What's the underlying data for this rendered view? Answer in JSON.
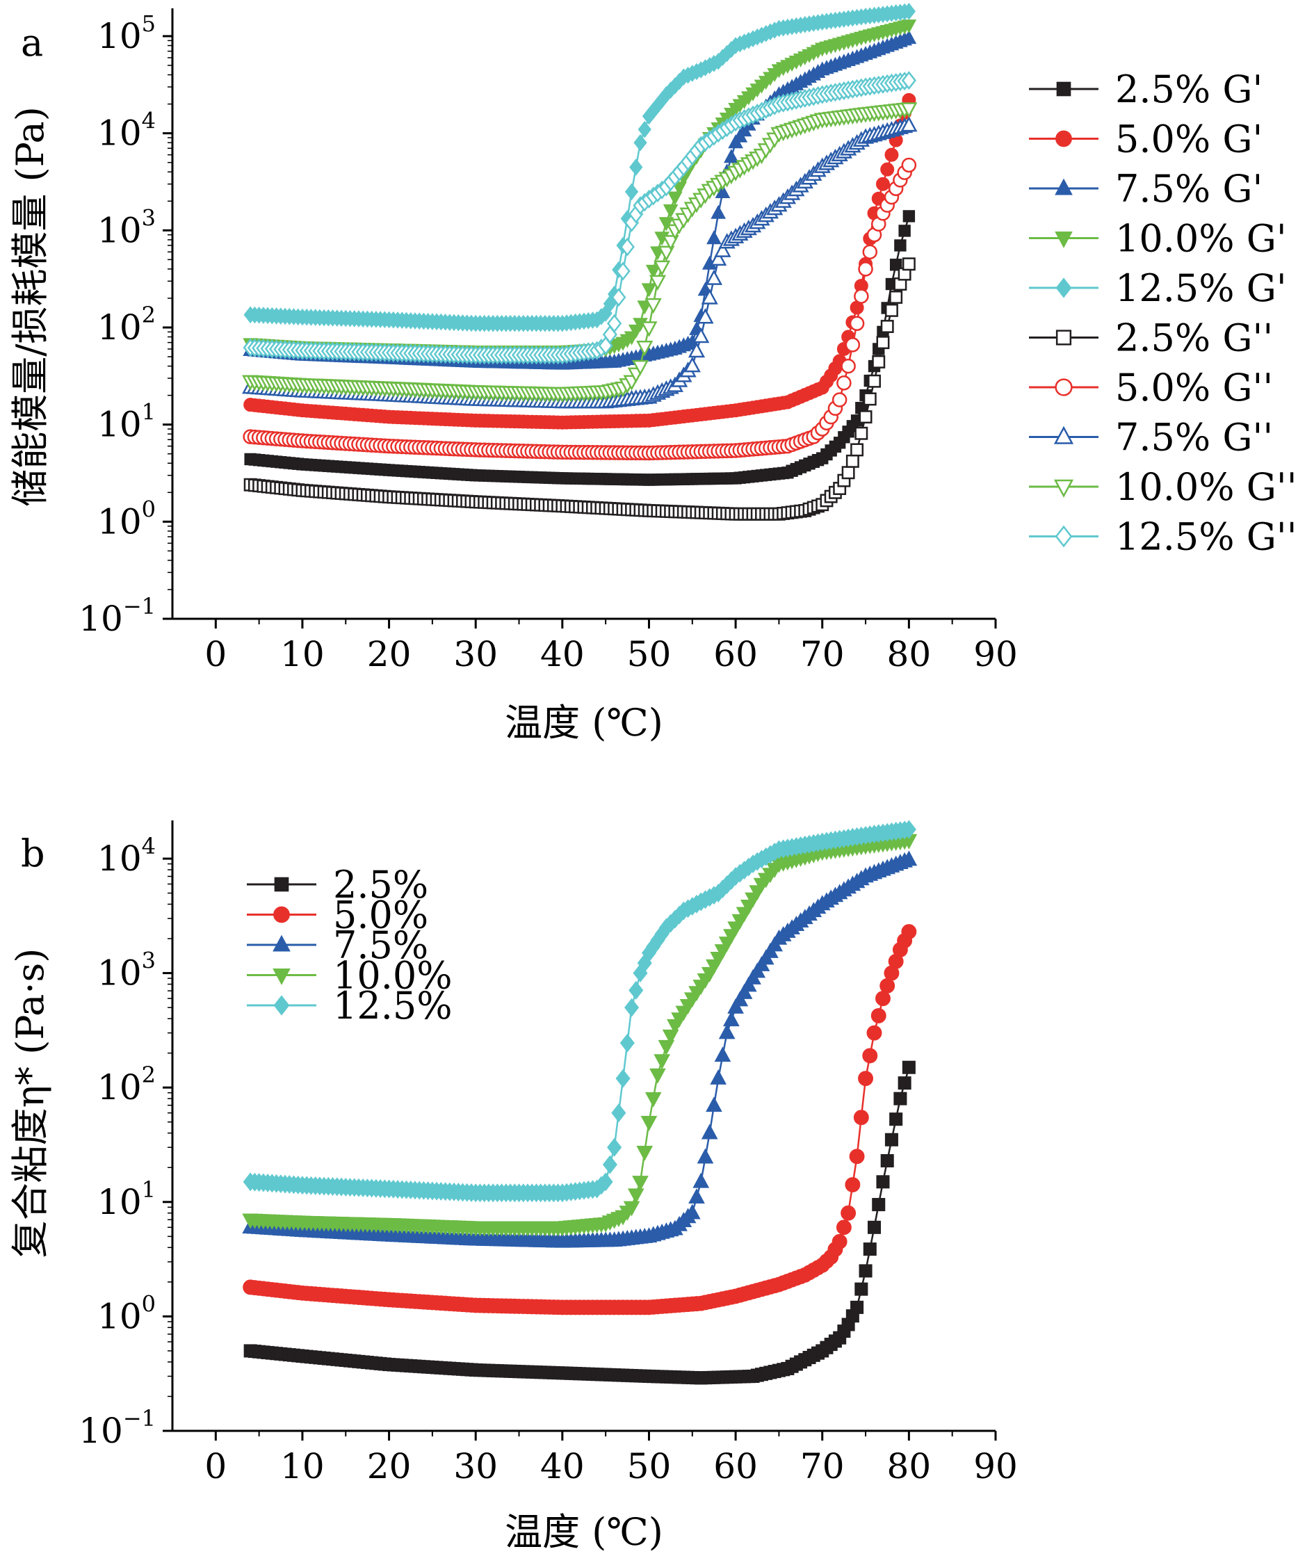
{
  "chart_data": [
    {
      "panel_label": "a",
      "type": "scatter",
      "xlabel": "温度 (℃)",
      "ylabel": "储能模量/损耗模量 (Pa)",
      "x_ticks": [
        0,
        10,
        20,
        30,
        40,
        50,
        60,
        70,
        80,
        90
      ],
      "xlim": [
        -5,
        90
      ],
      "y_scale": "log",
      "ylim": [
        0.1,
        200000
      ],
      "y_tick_exponents": [
        "5",
        "4",
        "3",
        "2",
        "1",
        "0",
        "−1"
      ],
      "y_tick_values": [
        100000,
        10000,
        1000,
        100,
        10,
        1,
        0.1
      ],
      "legend_placement": "right-outside",
      "series": [
        {
          "name": "2.5% G'",
          "color": "#231f20",
          "marker": "square",
          "filled": true,
          "x": [
            4,
            10,
            20,
            30,
            40,
            50,
            60,
            66,
            70,
            72,
            74,
            75,
            76,
            77,
            78,
            79,
            80
          ],
          "y": [
            4.4,
            3.9,
            3.4,
            3.0,
            2.8,
            2.7,
            2.8,
            3.2,
            4.5,
            6.5,
            11,
            20,
            40,
            90,
            280,
            700,
            1400
          ]
        },
        {
          "name": "5.0% G'",
          "color": "#e8302b",
          "marker": "circle",
          "filled": true,
          "x": [
            4,
            10,
            20,
            30,
            40,
            50,
            60,
            66,
            70,
            71,
            72,
            73,
            74,
            75,
            76,
            77,
            78,
            79,
            80
          ],
          "y": [
            16,
            14,
            12,
            11,
            10.5,
            11,
            14,
            17,
            24,
            32,
            45,
            80,
            160,
            450,
            1500,
            3000,
            6000,
            12000,
            22000
          ]
        },
        {
          "name": "7.5% G'",
          "color": "#2a5caa",
          "marker": "triangle-up",
          "filled": true,
          "x": [
            4,
            10,
            20,
            30,
            40,
            46,
            50,
            53,
            55,
            56,
            57,
            58,
            59,
            60,
            62,
            65,
            70,
            75,
            80
          ],
          "y": [
            58,
            52,
            48,
            44,
            42,
            44,
            52,
            60,
            70,
            130,
            450,
            1500,
            4000,
            8000,
            14000,
            25000,
            45000,
            65000,
            95000
          ]
        },
        {
          "name": "10.0% G'",
          "color": "#6cbb45",
          "marker": "triangle-down",
          "filled": true,
          "x": [
            4,
            10,
            20,
            30,
            40,
            45,
            47,
            48,
            49,
            50,
            51,
            52,
            53,
            54,
            55,
            57,
            60,
            65,
            70,
            75,
            80
          ],
          "y": [
            68,
            63,
            60,
            57,
            57,
            60,
            70,
            80,
            110,
            250,
            600,
            1200,
            2200,
            3500,
            5000,
            9000,
            18000,
            45000,
            75000,
            100000,
            130000
          ]
        },
        {
          "name": "12.5% G'",
          "color": "#5fc8cf",
          "marker": "diamond",
          "filled": true,
          "x": [
            4,
            10,
            20,
            30,
            40,
            44,
            45,
            46,
            47,
            48,
            49,
            50,
            52,
            54,
            56,
            58,
            60,
            65,
            70,
            75,
            80
          ],
          "y": [
            135,
            128,
            120,
            110,
            110,
            120,
            140,
            220,
            700,
            2500,
            8000,
            15000,
            25000,
            38000,
            45000,
            55000,
            80000,
            120000,
            140000,
            160000,
            180000
          ]
        },
        {
          "name": "2.5% G''",
          "color": "#231f20",
          "marker": "square",
          "filled": false,
          "x": [
            4,
            10,
            20,
            30,
            40,
            50,
            55,
            60,
            65,
            68,
            70,
            72,
            73,
            74,
            75,
            76,
            77,
            78,
            79,
            80
          ],
          "y": [
            2.4,
            2.1,
            1.8,
            1.6,
            1.45,
            1.3,
            1.25,
            1.2,
            1.2,
            1.3,
            1.5,
            2.2,
            3.2,
            5.5,
            12,
            28,
            70,
            150,
            280,
            450
          ]
        },
        {
          "name": "5.0% G''",
          "color": "#e8302b",
          "marker": "circle",
          "filled": false,
          "x": [
            4,
            10,
            20,
            30,
            40,
            50,
            60,
            66,
            69,
            70,
            71,
            72,
            73,
            74,
            75,
            76,
            77,
            78,
            79,
            80
          ],
          "y": [
            7.5,
            6.8,
            6.0,
            5.5,
            5.2,
            5.1,
            5.4,
            6.0,
            7.5,
            9,
            12,
            18,
            40,
            110,
            400,
            900,
            1500,
            2200,
            3300,
            4700
          ]
        },
        {
          "name": "7.5% G''",
          "color": "#2a5caa",
          "marker": "triangle-up",
          "filled": false,
          "x": [
            4,
            10,
            20,
            30,
            40,
            45,
            50,
            53,
            55,
            56,
            57,
            58,
            59,
            60,
            62,
            65,
            70,
            75,
            80
          ],
          "y": [
            24,
            22,
            20,
            18,
            17,
            17,
            19,
            25,
            40,
            80,
            200,
            500,
            750,
            850,
            1100,
            1800,
            4500,
            9000,
            12000
          ]
        },
        {
          "name": "10.0% G''",
          "color": "#6cbb45",
          "marker": "triangle-down",
          "filled": false,
          "x": [
            4,
            10,
            20,
            30,
            40,
            45,
            47,
            48,
            49,
            50,
            51,
            52,
            53,
            55,
            57,
            60,
            63,
            65,
            70,
            75,
            80
          ],
          "y": [
            28,
            26,
            24,
            22,
            21,
            22,
            24,
            28,
            40,
            100,
            300,
            600,
            1000,
            1700,
            2600,
            4000,
            6000,
            10000,
            14000,
            16000,
            18000
          ]
        },
        {
          "name": "12.5% G''",
          "color": "#5fc8cf",
          "marker": "diamond",
          "filled": false,
          "x": [
            4,
            10,
            20,
            30,
            40,
            44,
            45,
            46,
            47,
            48,
            49,
            50,
            52,
            54,
            56,
            58,
            60,
            65,
            70,
            75,
            80
          ],
          "y": [
            62,
            58,
            55,
            52,
            52,
            58,
            65,
            110,
            380,
            1200,
            1800,
            2100,
            2800,
            4500,
            7500,
            10000,
            13000,
            20000,
            25000,
            30000,
            35000
          ]
        }
      ]
    },
    {
      "panel_label": "b",
      "type": "scatter",
      "xlabel": "温度 (℃)",
      "ylabel": "复合粘度η* (Pa·s)",
      "x_ticks": [
        0,
        10,
        20,
        30,
        40,
        50,
        60,
        70,
        80,
        90
      ],
      "xlim": [
        -5,
        90
      ],
      "y_scale": "log",
      "ylim": [
        0.1,
        20000
      ],
      "y_tick_exponents": [
        "4",
        "3",
        "2",
        "1",
        "0",
        "−1"
      ],
      "y_tick_values": [
        10000,
        1000,
        100,
        10,
        1,
        0.1
      ],
      "legend_placement": "top-left",
      "series": [
        {
          "name": "2.5%",
          "color": "#231f20",
          "marker": "square",
          "filled": true,
          "x": [
            4,
            10,
            20,
            30,
            40,
            50,
            56,
            62,
            66,
            70,
            72,
            73,
            74,
            75,
            76,
            77,
            78,
            79,
            80
          ],
          "y": [
            0.5,
            0.45,
            0.38,
            0.34,
            0.32,
            0.3,
            0.29,
            0.3,
            0.35,
            0.5,
            0.65,
            0.85,
            1.2,
            2.5,
            6,
            15,
            35,
            80,
            150
          ]
        },
        {
          "name": "5.0%",
          "color": "#e8302b",
          "marker": "circle",
          "filled": true,
          "x": [
            4,
            10,
            20,
            30,
            40,
            50,
            56,
            60,
            65,
            68,
            70,
            71,
            72,
            73,
            74,
            75,
            76,
            77,
            78,
            79,
            80
          ],
          "y": [
            1.8,
            1.6,
            1.4,
            1.25,
            1.2,
            1.2,
            1.3,
            1.5,
            1.9,
            2.3,
            2.8,
            3.3,
            4.5,
            8,
            25,
            120,
            300,
            600,
            1000,
            1600,
            2300
          ]
        },
        {
          "name": "7.5%",
          "color": "#2a5caa",
          "marker": "triangle-up",
          "filled": true,
          "x": [
            4,
            10,
            20,
            30,
            40,
            46,
            50,
            53,
            55,
            56,
            57,
            58,
            59,
            60,
            62,
            65,
            70,
            75,
            80
          ],
          "y": [
            6,
            5.6,
            5.1,
            4.7,
            4.5,
            4.6,
            5,
            5.8,
            8,
            15,
            40,
            120,
            300,
            500,
            900,
            2000,
            4000,
            7000,
            9800
          ]
        },
        {
          "name": "10.0%",
          "color": "#6cbb45",
          "marker": "triangle-down",
          "filled": true,
          "x": [
            4,
            10,
            20,
            30,
            40,
            45,
            47,
            48,
            49,
            50,
            51,
            52,
            53,
            55,
            57,
            60,
            63,
            65,
            70,
            75,
            80
          ],
          "y": [
            7,
            6.7,
            6.4,
            6,
            6,
            6.5,
            7.5,
            9,
            15,
            50,
            130,
            230,
            350,
            600,
            1000,
            2500,
            6000,
            9000,
            11500,
            13000,
            14500
          ]
        },
        {
          "name": "12.5%",
          "color": "#5fc8cf",
          "marker": "diamond",
          "filled": true,
          "x": [
            4,
            10,
            20,
            30,
            40,
            44,
            45,
            46,
            47,
            48,
            49,
            50,
            52,
            54,
            56,
            58,
            60,
            62,
            65,
            70,
            75,
            80
          ],
          "y": [
            15,
            14,
            13,
            12,
            12,
            13,
            15,
            30,
            120,
            500,
            1000,
            1500,
            2500,
            3500,
            4200,
            5000,
            7000,
            9000,
            12000,
            14000,
            16000,
            18000
          ]
        }
      ]
    }
  ]
}
